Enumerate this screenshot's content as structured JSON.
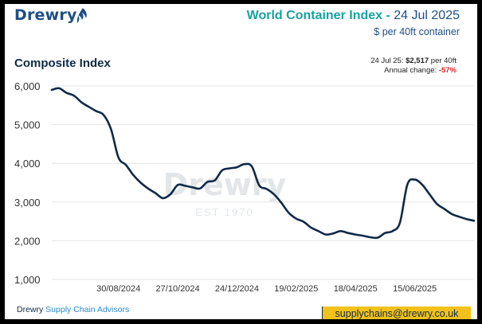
{
  "header": {
    "logo": "Drewry",
    "title_main": "World Container Index - ",
    "title_date": "24 Jul 2025",
    "subtitle": "$ per 40ft container",
    "chart_heading": "Composite Index",
    "annotation_prefix": "24 Jul 25: ",
    "annotation_value": "$2,517",
    "annotation_suffix": " per 40ft",
    "annual_change_label": "Annual change: ",
    "annual_change_value": "-57%"
  },
  "watermark": {
    "name": "Drewry",
    "est": "EST 1970"
  },
  "footer": {
    "brand": "Drewry",
    "brand_suffix": "Supply Chain Advisors",
    "email": "supplychains@drewry.co.uk"
  },
  "colors": {
    "line": "#0f2a46",
    "accent": "#15a3a3",
    "negative": "#e0242b",
    "email_bg": "#f2c21b"
  },
  "chart_data": {
    "type": "line",
    "title": "Composite Index",
    "xlabel": "",
    "ylabel": "",
    "ylim": [
      1000,
      6000
    ],
    "yticks": [
      1000,
      2000,
      3000,
      4000,
      5000,
      6000
    ],
    "ytick_labels": [
      "1,000",
      "2,000",
      "3,000",
      "4,000",
      "5,000",
      "6,000"
    ],
    "x_tick_labels": [
      "30/08/2024",
      "27/10/2024",
      "24/12/2024",
      "19/02/2025",
      "18/04/2025",
      "15/06/2025"
    ],
    "x_tick_positions": [
      9,
      17,
      25,
      33,
      41,
      49
    ],
    "grid": "horizontal",
    "series": [
      {
        "values": [
          5900,
          5940,
          5820,
          5750,
          5580,
          5460,
          5350,
          5250,
          4880,
          4150,
          3960,
          3700,
          3500,
          3350,
          3230,
          3100,
          3200,
          3440,
          3420,
          3380,
          3350,
          3520,
          3560,
          3820,
          3870,
          3900,
          3980,
          3920,
          3430,
          3340,
          3200,
          2980,
          2720,
          2570,
          2490,
          2340,
          2250,
          2160,
          2190,
          2250,
          2200,
          2160,
          2130,
          2090,
          2080,
          2200,
          2250,
          2470,
          3450,
          3580,
          3450,
          3200,
          2950,
          2820,
          2690,
          2620,
          2560,
          2517
        ]
      }
    ]
  }
}
